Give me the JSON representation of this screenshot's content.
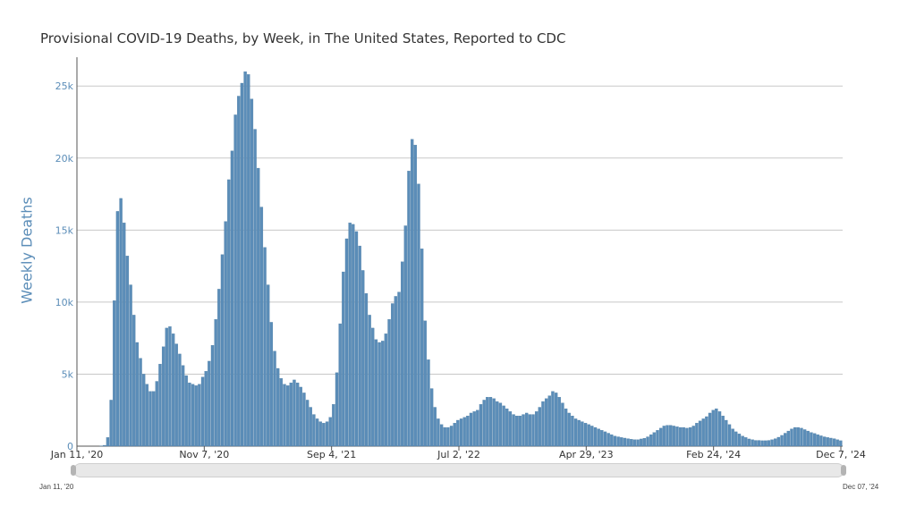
{
  "title": "Provisional COVID-19 Deaths, by Week, in The United States, Reported to CDC",
  "navigator": {
    "start_label": "Jan 11, '20",
    "end_label": "Dec 07, '24"
  },
  "chart_data": {
    "type": "bar",
    "title": "Provisional COVID-19 Deaths, by Week, in The United States, Reported to CDC",
    "xlabel": "",
    "ylabel": "Weekly Deaths",
    "ylim": [
      0,
      27000
    ],
    "grid": true,
    "bar_color": "#5b8db8",
    "x_start": "Jan 11, '20",
    "x_end": "Dec 7, '24",
    "x_ticks": [
      "Jan 11, '20",
      "Nov 7, '20",
      "Sep 4, '21",
      "Jul 2, '22",
      "Apr 29, '23",
      "Feb 24, '24",
      "Dec 7, '24"
    ],
    "y_ticks": [
      0,
      5000,
      10000,
      15000,
      20000,
      25000
    ],
    "y_tick_labels": [
      "0",
      "5k",
      "10k",
      "15k",
      "20k",
      "25k"
    ],
    "values": [
      0,
      0,
      0,
      0,
      0,
      0,
      0,
      10,
      60,
      600,
      3200,
      10100,
      16300,
      17200,
      15500,
      13200,
      11200,
      9100,
      7200,
      6100,
      5000,
      4300,
      3800,
      3800,
      4500,
      5700,
      6900,
      8200,
      8300,
      7800,
      7100,
      6400,
      5600,
      4900,
      4400,
      4300,
      4200,
      4300,
      4800,
      5200,
      5900,
      7000,
      8800,
      10900,
      13300,
      15600,
      18500,
      20500,
      23000,
      24300,
      25200,
      26000,
      25800,
      24100,
      22000,
      19300,
      16600,
      13800,
      11200,
      8600,
      6600,
      5400,
      4700,
      4300,
      4200,
      4400,
      4600,
      4400,
      4100,
      3700,
      3200,
      2700,
      2200,
      1900,
      1700,
      1600,
      1700,
      2000,
      2900,
      5100,
      8500,
      12100,
      14400,
      15500,
      15400,
      14900,
      13900,
      12200,
      10600,
      9100,
      8200,
      7400,
      7200,
      7300,
      7800,
      8800,
      9900,
      10400,
      10700,
      12800,
      15300,
      19100,
      21300,
      20900,
      18200,
      13700,
      8700,
      6000,
      4000,
      2700,
      1900,
      1500,
      1300,
      1300,
      1400,
      1600,
      1800,
      1900,
      2000,
      2100,
      2300,
      2400,
      2500,
      2900,
      3200,
      3400,
      3400,
      3300,
      3100,
      3000,
      2800,
      2600,
      2400,
      2200,
      2100,
      2100,
      2200,
      2300,
      2200,
      2200,
      2400,
      2700,
      3100,
      3300,
      3500,
      3800,
      3700,
      3400,
      3000,
      2600,
      2300,
      2100,
      1900,
      1800,
      1700,
      1600,
      1500,
      1400,
      1300,
      1200,
      1100,
      1000,
      900,
      800,
      700,
      650,
      600,
      560,
      520,
      480,
      450,
      450,
      500,
      550,
      650,
      800,
      950,
      1100,
      1250,
      1400,
      1450,
      1450,
      1400,
      1350,
      1300,
      1300,
      1250,
      1300,
      1400,
      1600,
      1750,
      1900,
      2050,
      2300,
      2500,
      2600,
      2400,
      2100,
      1800,
      1500,
      1200,
      1000,
      850,
      700,
      600,
      500,
      450,
      400,
      400,
      380,
      380,
      400,
      450,
      520,
      620,
      750,
      900,
      1050,
      1200,
      1300,
      1300,
      1250,
      1150,
      1050,
      950,
      880,
      800,
      720,
      650,
      600,
      560,
      520,
      450,
      380
    ]
  }
}
